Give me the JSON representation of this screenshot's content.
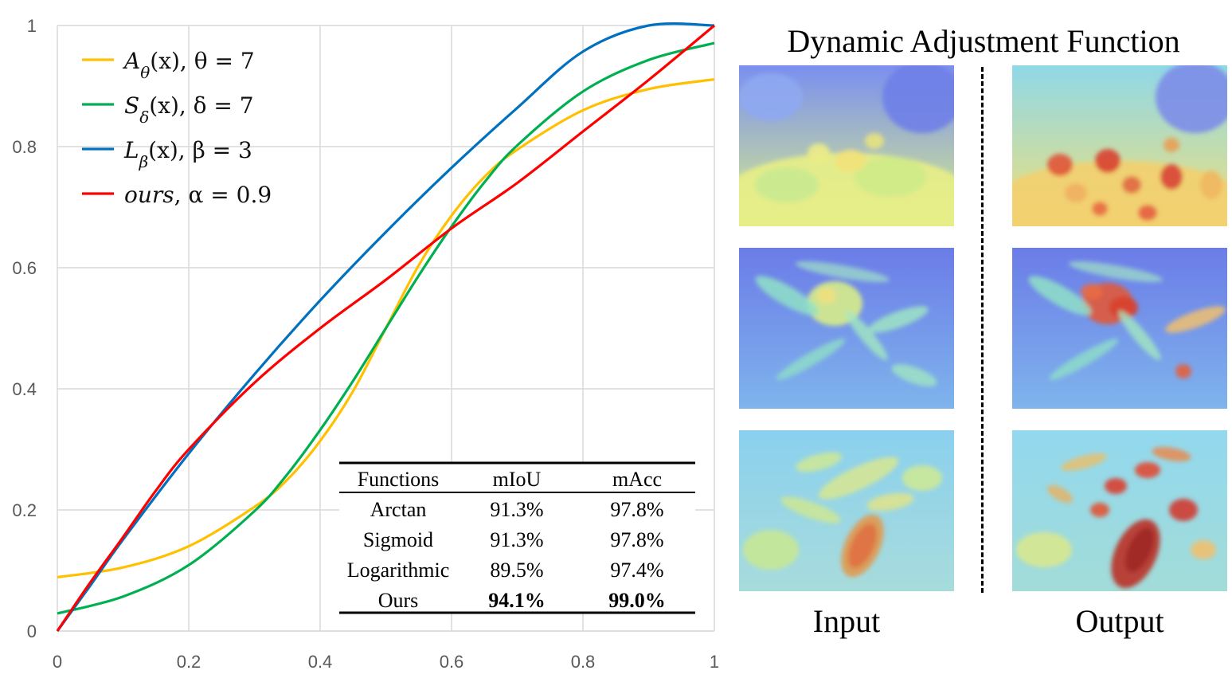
{
  "chart_data": {
    "type": "line",
    "xlim": [
      0,
      1
    ],
    "ylim": [
      0,
      1
    ],
    "x_ticks": [
      "0",
      "0.2",
      "0.4",
      "0.6",
      "0.8",
      "1"
    ],
    "y_ticks": [
      "0",
      "0.2",
      "0.4",
      "0.6",
      "0.8",
      "1"
    ],
    "grid": true,
    "legend_position": "top-left",
    "series": [
      {
        "name": "Aθ(x), θ = 7",
        "label": "A",
        "subscript": "θ",
        "rest": "(x), θ = 7",
        "color": "#FFC000",
        "x": [
          0,
          0.1,
          0.2,
          0.3,
          0.35,
          0.4,
          0.45,
          0.5,
          0.55,
          0.6,
          0.65,
          0.7,
          0.8,
          0.9,
          1.0
        ],
        "y": [
          0.089,
          0.105,
          0.14,
          0.205,
          0.25,
          0.314,
          0.396,
          0.5,
          0.604,
          0.686,
          0.75,
          0.795,
          0.86,
          0.895,
          0.911
        ]
      },
      {
        "name": "Sδ(x), δ = 7",
        "label": "S",
        "subscript": "δ",
        "rest": "(x), δ = 7",
        "color": "#00B050",
        "x": [
          0,
          0.1,
          0.2,
          0.3,
          0.35,
          0.4,
          0.45,
          0.5,
          0.55,
          0.6,
          0.65,
          0.7,
          0.8,
          0.9,
          1.0
        ],
        "y": [
          0.029,
          0.057,
          0.109,
          0.198,
          0.259,
          0.332,
          0.413,
          0.5,
          0.587,
          0.668,
          0.741,
          0.802,
          0.891,
          0.943,
          0.971
        ]
      },
      {
        "name": "Lβ(x), β = 3",
        "label": "L",
        "subscript": "β",
        "rest": "(x), β = 3",
        "color": "#0070C0",
        "x": [
          0,
          0.05,
          0.1,
          0.2,
          0.3,
          0.4,
          0.5,
          0.6,
          0.7,
          0.8,
          0.9,
          1.0
        ],
        "y": [
          0.0,
          0.075,
          0.151,
          0.293,
          0.424,
          0.546,
          0.659,
          0.765,
          0.864,
          0.957,
          1.0,
          1.0
        ]
      },
      {
        "name": "ours, α = 0.9",
        "label": "ours",
        "subscript": "",
        "rest": ", α = 0.9",
        "color": "#FF0000",
        "x": [
          0,
          0.05,
          0.1,
          0.15,
          0.2,
          0.3,
          0.4,
          0.5,
          0.6,
          0.7,
          0.8,
          0.9,
          1.0
        ],
        "y": [
          0.0,
          0.08,
          0.155,
          0.232,
          0.3,
          0.41,
          0.5,
          0.58,
          0.665,
          0.74,
          0.825,
          0.91,
          1.0
        ]
      }
    ]
  },
  "table": {
    "headers": [
      "Functions",
      "mIoU",
      "mAcc"
    ],
    "rows": [
      [
        "Arctan",
        "91.3%",
        "97.8%"
      ],
      [
        "Sigmoid",
        "91.3%",
        "97.8%"
      ],
      [
        "Logarithmic",
        "89.5%",
        "97.4%"
      ],
      [
        "Ours",
        "94.1%",
        "99.0%"
      ]
    ],
    "bold_row": 3
  },
  "figure": {
    "title": "Dynamic Adjustment Function",
    "input_label": "Input",
    "output_label": "Output"
  }
}
